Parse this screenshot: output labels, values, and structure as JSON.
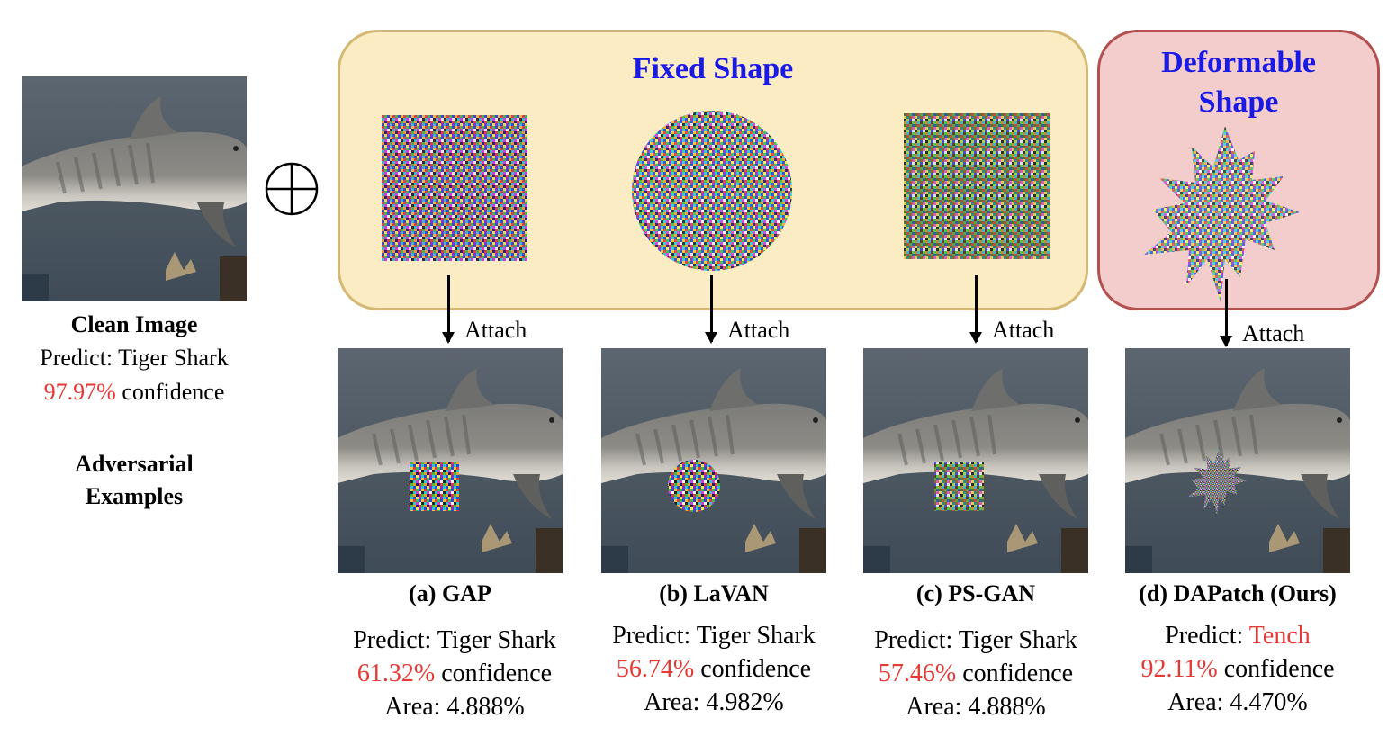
{
  "clean": {
    "title": "Clean Image",
    "predict": "Predict: Tiger Shark",
    "confidence_value": "97.97%",
    "confidence_suffix": " confidence"
  },
  "adversarial_label_line1": "Adversarial",
  "adversarial_label_line2": "Examples",
  "fixed_panel_title": "Fixed Shape",
  "deform_panel_title_line1": "Deformable",
  "deform_panel_title_line2": "Shape",
  "attach_label": "Attach",
  "methods": [
    {
      "caption": "(a) GAP",
      "predict_prefix": "Predict: ",
      "predict_class": "Tiger Shark",
      "confidence_value": "61.32%",
      "confidence_suffix": " confidence",
      "area": "Area: 4.888%"
    },
    {
      "caption": "(b) LaVAN",
      "predict_prefix": "Predict: ",
      "predict_class": "Tiger Shark",
      "confidence_value": "56.74%",
      "confidence_suffix": " confidence",
      "area": "Area: 4.982%"
    },
    {
      "caption": "(c) PS-GAN",
      "predict_prefix": "Predict: ",
      "predict_class": "Tiger Shark",
      "confidence_value": "57.46%",
      "confidence_suffix": " confidence",
      "area": "Area: 4.888%"
    },
    {
      "caption": "(d) DAPatch (Ours)",
      "predict_prefix": "Predict: ",
      "predict_class": "Tench",
      "confidence_value": "92.11%",
      "confidence_suffix": " confidence",
      "area": "Area: 4.470%"
    }
  ],
  "colors": {
    "fixed_panel_bg": "#fbecc4",
    "fixed_panel_border": "#d4b873",
    "deform_panel_bg": "#f3cccc",
    "deform_panel_border": "#b34f4f",
    "title_blue": "#1a1ae6",
    "confidence_red": "#e53935"
  }
}
